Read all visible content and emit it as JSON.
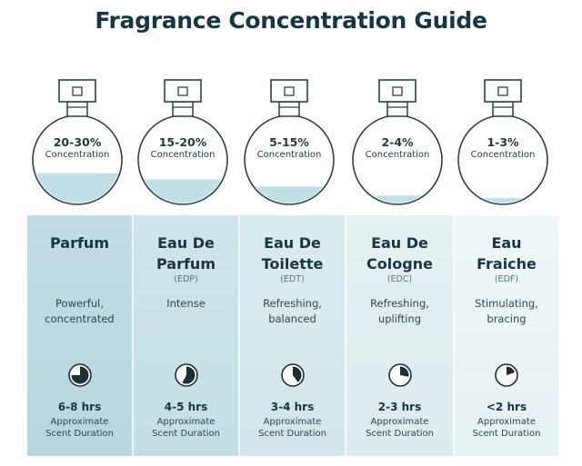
{
  "title": "Fragrance Concentration Guide",
  "colors": {
    "liquid": "#c3e0e6",
    "outline": "#2a4148",
    "timer_fill": "#1e2f34"
  },
  "icons": {
    "bottle": "perfume-bottle-icon",
    "timer": "clock-pie-icon"
  },
  "concentrations": [
    {
      "percent": "20-30%",
      "concentration_label": "Concentration",
      "fill_level": 0.35,
      "name_line1": "Parfum",
      "name_line2": "",
      "abbr": "",
      "desc_line1": "Powerful,",
      "desc_line2": "concentrated",
      "duration": "6-8 hrs",
      "duration_label_line1": "Approximate",
      "duration_label_line2": "Scent Duration",
      "timer_fraction": 0.75
    },
    {
      "percent": "15-20%",
      "concentration_label": "Concentration",
      "fill_level": 0.28,
      "name_line1": "Eau De",
      "name_line2": "Parfum",
      "abbr": "(EDP)",
      "desc_line1": "Intense",
      "desc_line2": "",
      "duration": "4-5 hrs",
      "duration_label_line1": "Approximate",
      "duration_label_line2": "Scent Duration",
      "timer_fraction": 0.58
    },
    {
      "percent": "5-15%",
      "concentration_label": "Concentration",
      "fill_level": 0.2,
      "name_line1": "Eau De",
      "name_line2": "Toilette",
      "abbr": "(EDT)",
      "desc_line1": "Refreshing,",
      "desc_line2": "balanced",
      "duration": "3-4 hrs",
      "duration_label_line1": "Approximate",
      "duration_label_line2": "Scent Duration",
      "timer_fraction": 0.4
    },
    {
      "percent": "2-4%",
      "concentration_label": "Concentration",
      "fill_level": 0.1,
      "name_line1": "Eau De",
      "name_line2": "Cologne",
      "abbr": "(EDC)",
      "desc_line1": "Refreshing,",
      "desc_line2": "uplifting",
      "duration": "2-3 hrs",
      "duration_label_line1": "Approximate",
      "duration_label_line2": "Scent Duration",
      "timer_fraction": 0.28
    },
    {
      "percent": "1-3%",
      "concentration_label": "Concentration",
      "fill_level": 0.07,
      "name_line1": "Eau",
      "name_line2": "Fraiche",
      "abbr": "(EDF)",
      "desc_line1": "Stimulating,",
      "desc_line2": "bracing",
      "duration": "<2 hrs",
      "duration_label_line1": "Approximate",
      "duration_label_line2": "Scent Duration",
      "timer_fraction": 0.2
    }
  ]
}
